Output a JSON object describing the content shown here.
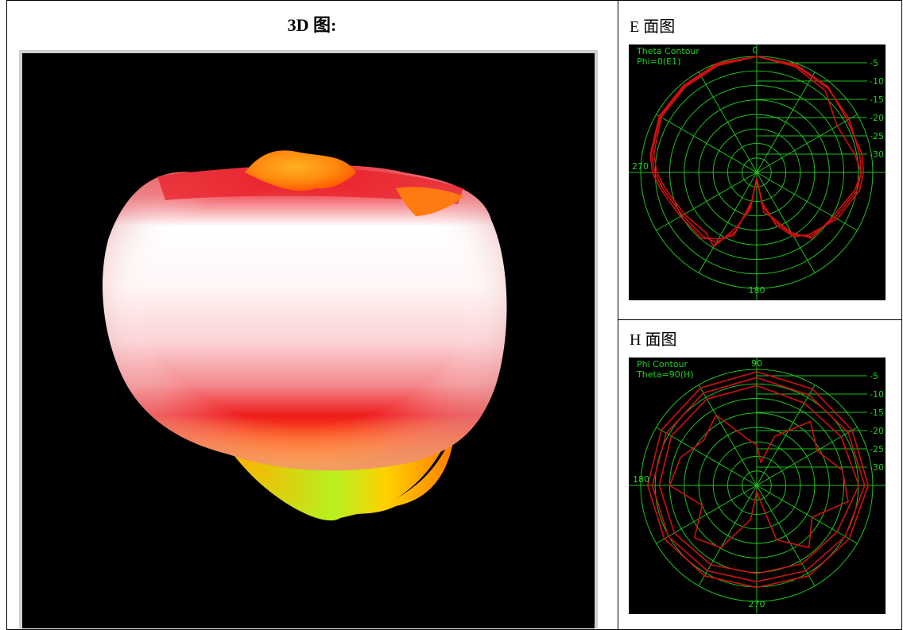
{
  "titles": {
    "view3d": "3D 图:",
    "e_plane": "E 面图",
    "h_plane": "H 面图"
  },
  "colors": {
    "background": "#000000",
    "grid": "#20c020",
    "trace": "#d01010",
    "label": "#20d020"
  },
  "chart_data": [
    {
      "type": "polar",
      "name": "E-plane",
      "title": "Theta Contour",
      "subtitle": "Phi=0(E1)",
      "angle_labels": {
        "top": "0",
        "left": "270",
        "bottom": "180"
      },
      "ring_labels": [
        "-5",
        "-10",
        "-15",
        "-20",
        "-25",
        "-30"
      ],
      "rings": 8,
      "spokes_deg": 30,
      "traces": [
        {
          "angles": [
            0,
            20,
            40,
            60,
            80,
            90,
            100,
            120,
            140,
            150,
            160,
            170,
            180,
            190,
            200,
            210,
            220,
            240,
            260,
            270,
            280,
            300,
            320,
            340,
            360
          ],
          "values": [
            1.0,
            0.98,
            0.95,
            0.92,
            0.9,
            0.9,
            0.88,
            0.78,
            0.72,
            0.62,
            0.45,
            0.3,
            0.05,
            0.28,
            0.55,
            0.7,
            0.72,
            0.74,
            0.82,
            0.88,
            0.92,
            0.96,
            0.97,
            0.99,
            1.0
          ]
        },
        {
          "angles": [
            0,
            20,
            40,
            60,
            80,
            90,
            100,
            120,
            140,
            150,
            160,
            170,
            180,
            190,
            200,
            210,
            220,
            240,
            260,
            270,
            280,
            300,
            320,
            340,
            360
          ],
          "values": [
            1.0,
            0.97,
            0.92,
            0.8,
            0.86,
            0.9,
            0.86,
            0.76,
            0.74,
            0.6,
            0.42,
            0.35,
            0.05,
            0.32,
            0.5,
            0.74,
            0.68,
            0.72,
            0.8,
            0.86,
            0.9,
            0.95,
            0.96,
            0.98,
            1.0
          ]
        },
        {
          "angles": [
            0,
            20,
            40,
            60,
            80,
            90,
            100,
            120,
            140,
            150,
            160,
            170,
            180,
            190,
            200,
            210,
            220,
            240,
            260,
            270,
            280,
            300,
            320,
            340,
            360
          ],
          "values": [
            1.0,
            0.99,
            0.96,
            0.9,
            0.92,
            0.92,
            0.9,
            0.8,
            0.7,
            0.64,
            0.48,
            0.26,
            0.05,
            0.25,
            0.58,
            0.66,
            0.74,
            0.76,
            0.84,
            0.9,
            0.93,
            0.97,
            0.98,
            1.0,
            1.0
          ]
        }
      ]
    },
    {
      "type": "polar",
      "name": "H-plane",
      "title": "Phi Contour",
      "subtitle": "Theta=90(H)",
      "angle_labels": {
        "top": "90",
        "left": "180",
        "bottom": "270"
      },
      "ring_labels": [
        "-5",
        "-10",
        "-15",
        "-20",
        "-25",
        "-30"
      ],
      "rings": 8,
      "spokes_deg": 30,
      "traces": [
        {
          "angles": [
            0,
            30,
            60,
            90,
            120,
            150,
            180,
            210,
            240,
            270,
            300,
            330,
            360
          ],
          "values": [
            0.98,
            0.96,
            0.95,
            0.96,
            0.92,
            0.9,
            0.88,
            0.9,
            0.92,
            0.94,
            0.95,
            0.97,
            0.98
          ]
        },
        {
          "angles": [
            0,
            30,
            60,
            90,
            120,
            150,
            180,
            210,
            240,
            270,
            300,
            330,
            360
          ],
          "values": [
            0.93,
            0.9,
            0.91,
            0.93,
            0.88,
            0.85,
            0.83,
            0.85,
            0.88,
            0.9,
            0.9,
            0.92,
            0.93
          ]
        },
        {
          "angles": [
            0,
            30,
            60,
            90,
            120,
            150,
            180,
            210,
            240,
            270,
            300,
            330,
            360
          ],
          "values": [
            0.86,
            0.82,
            0.84,
            0.88,
            0.8,
            0.78,
            0.76,
            0.79,
            0.82,
            0.84,
            0.85,
            0.86,
            0.86
          ]
        },
        {
          "angles": [
            0,
            10,
            20,
            40,
            60,
            80,
            100,
            120,
            140,
            160,
            170,
            180,
            190,
            210,
            230,
            250,
            270,
            290,
            310,
            330,
            350,
            360
          ],
          "values": [
            0.35,
            0.2,
            0.45,
            0.72,
            0.6,
            0.75,
            0.8,
            0.55,
            0.7,
            0.5,
            0.1,
            0.05,
            0.3,
            0.62,
            0.7,
            0.5,
            0.75,
            0.7,
            0.6,
            0.7,
            0.4,
            0.35
          ]
        }
      ]
    }
  ]
}
